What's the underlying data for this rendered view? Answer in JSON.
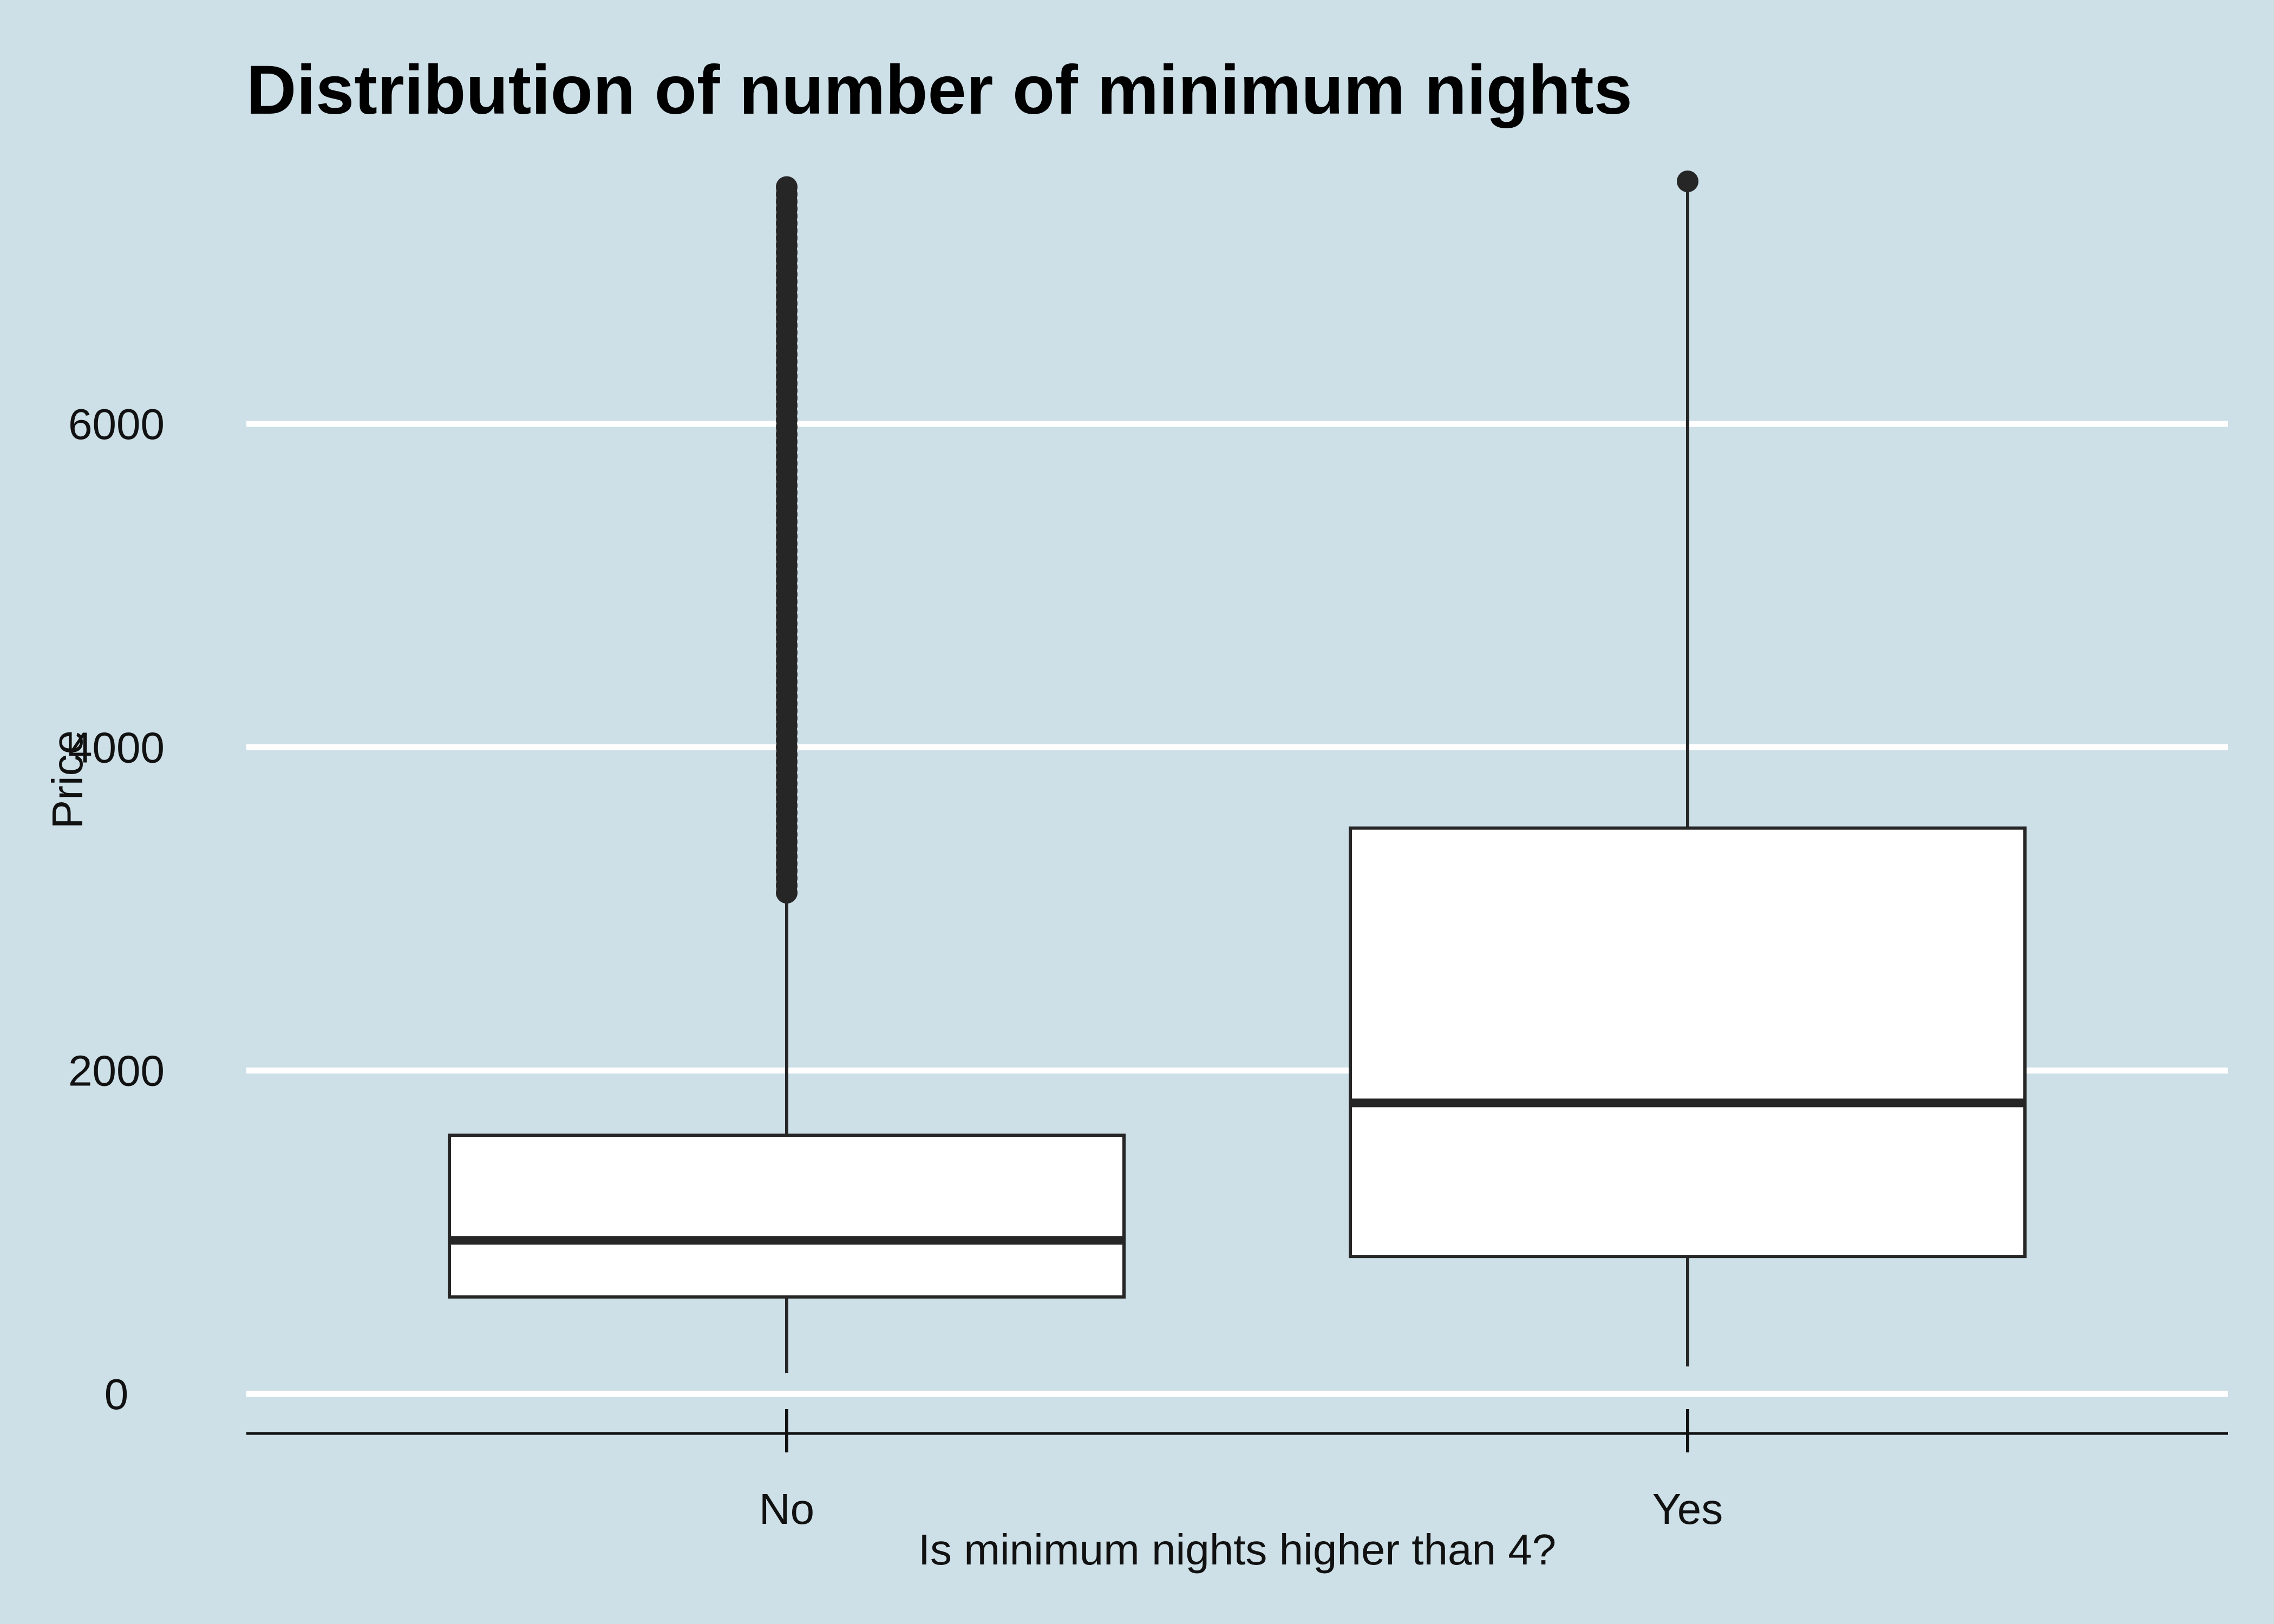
{
  "chart_data": {
    "type": "boxplot",
    "title": "Distribution of number of minimum nights",
    "xlabel": "Is minimum nights higher than 4?",
    "ylabel": "Price",
    "ylim": [
      -120,
      7700
    ],
    "yticks": [
      0,
      2000,
      4000,
      6000
    ],
    "y_tick_labels": [
      "0",
      "2000",
      "4000",
      "6000"
    ],
    "grid": "horizontal major lines",
    "legend": "none",
    "colors": {
      "background": "#cddfe7",
      "grid": "#ffffff",
      "box_fill": "#ffffff",
      "stroke": "#262626"
    },
    "categories": [
      "No",
      "Yes"
    ],
    "boxes": [
      {
        "category": "No",
        "whisker_low": 130,
        "q1": 600,
        "median": 950,
        "q3": 1600,
        "whisker_high": 3050,
        "outliers_dense_from": 3100,
        "outliers_dense_to": 7500
      },
      {
        "category": "Yes",
        "whisker_low": 170,
        "q1": 850,
        "median": 1800,
        "q3": 3500,
        "whisker_high": 7500,
        "outliers": [
          7500
        ]
      }
    ]
  }
}
